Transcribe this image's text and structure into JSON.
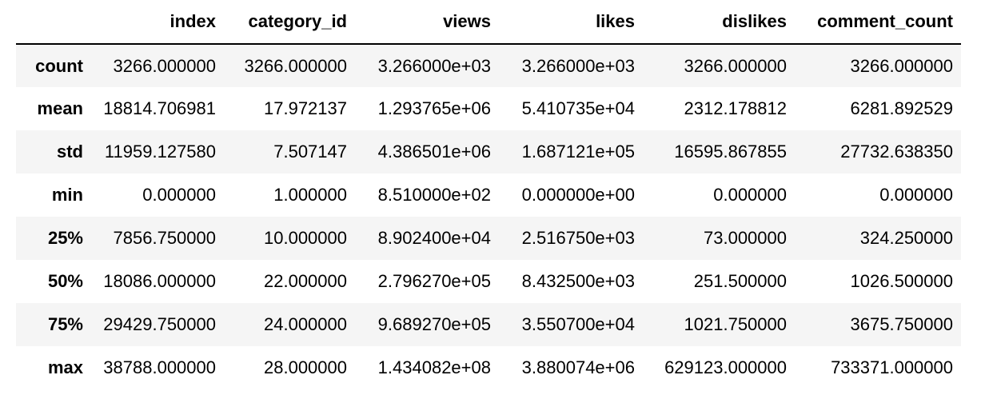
{
  "table": {
    "columns": [
      "",
      "index",
      "category_id",
      "views",
      "likes",
      "dislikes",
      "comment_count"
    ],
    "rows": [
      {
        "label": "count",
        "values": [
          "3266.000000",
          "3266.000000",
          "3.266000e+03",
          "3.266000e+03",
          "3266.000000",
          "3266.000000"
        ]
      },
      {
        "label": "mean",
        "values": [
          "18814.706981",
          "17.972137",
          "1.293765e+06",
          "5.410735e+04",
          "2312.178812",
          "6281.892529"
        ]
      },
      {
        "label": "std",
        "values": [
          "11959.127580",
          "7.507147",
          "4.386501e+06",
          "1.687121e+05",
          "16595.867855",
          "27732.638350"
        ]
      },
      {
        "label": "min",
        "values": [
          "0.000000",
          "1.000000",
          "8.510000e+02",
          "0.000000e+00",
          "0.000000",
          "0.000000"
        ]
      },
      {
        "label": "25%",
        "values": [
          "7856.750000",
          "10.000000",
          "8.902400e+04",
          "2.516750e+03",
          "73.000000",
          "324.250000"
        ]
      },
      {
        "label": "50%",
        "values": [
          "18086.000000",
          "22.000000",
          "2.796270e+05",
          "8.432500e+03",
          "251.500000",
          "1026.500000"
        ]
      },
      {
        "label": "75%",
        "values": [
          "29429.750000",
          "24.000000",
          "9.689270e+05",
          "3.550700e+04",
          "1021.750000",
          "3675.750000"
        ]
      },
      {
        "label": "max",
        "values": [
          "38788.000000",
          "28.000000",
          "1.434082e+08",
          "3.880074e+06",
          "629123.000000",
          "733371.000000"
        ]
      }
    ]
  }
}
